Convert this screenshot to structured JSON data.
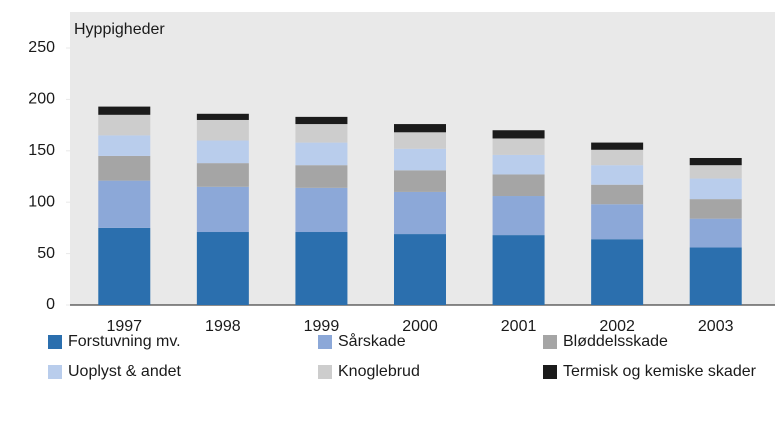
{
  "chart_data": {
    "type": "stacked_bar",
    "y_label": "Hyppigheder",
    "categories": [
      "1997",
      "1998",
      "1999",
      "2000",
      "2001",
      "2002",
      "2003"
    ],
    "series": [
      {
        "name": "Forstuvning mv.",
        "color": "#2b6fae",
        "values": [
          75,
          71,
          71,
          69,
          68,
          64,
          56
        ]
      },
      {
        "name": "Sårskade",
        "color": "#8ca8d8",
        "values": [
          46,
          44,
          43,
          41,
          38,
          34,
          28
        ]
      },
      {
        "name": "Bløddelsskade",
        "color": "#a5a5a5",
        "values": [
          24,
          23,
          22,
          21,
          21,
          19,
          19
        ]
      },
      {
        "name": "Uoplyst & andet",
        "color": "#b9cdec",
        "values": [
          20,
          22,
          22,
          21,
          19,
          19,
          20
        ]
      },
      {
        "name": "Knoglebrud",
        "color": "#cdcdcd",
        "values": [
          20,
          20,
          18,
          16,
          16,
          15,
          13
        ]
      },
      {
        "name": "Termisk og kemiske skader",
        "color": "#1b1b1b",
        "values": [
          8,
          6,
          7,
          8,
          8,
          7,
          7
        ]
      }
    ],
    "ylim": [
      0,
      250
    ],
    "yticks": [
      0,
      50,
      100,
      150,
      200,
      250
    ]
  }
}
